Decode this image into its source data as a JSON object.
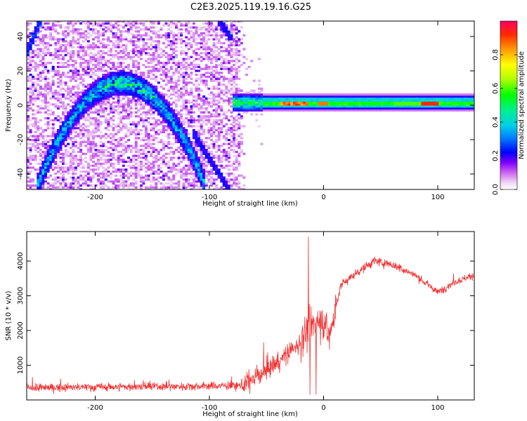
{
  "title": "C2E3.2025.119.19.16.G25",
  "chart_data": [
    {
      "type": "heatmap",
      "name": "spectrogram",
      "xlabel": "Height of straight line (km)",
      "ylabel": "Frequency (Hz)",
      "xlim": [
        -260,
        132
      ],
      "ylim": [
        -49,
        49
      ],
      "xticks": [
        -200,
        -100,
        0,
        100
      ],
      "yticks": [
        -40,
        -20,
        0,
        20,
        40
      ],
      "colorbar": {
        "label": "Normalized spectral amplitude",
        "range": [
          0,
          1
        ],
        "ticks": [
          0.0,
          0.2,
          0.4,
          0.6,
          0.8
        ]
      },
      "features": [
        {
          "name": "noise-cloud",
          "x_range": [
            -260,
            -72
          ],
          "y_range": [
            -49,
            49
          ]
        },
        {
          "name": "arc-main",
          "apex_x": -178,
          "apex_y": 13,
          "x_range": [
            -252,
            -105
          ],
          "y_end": -49
        },
        {
          "name": "upper-left-branch",
          "x_range": [
            -260,
            -247
          ],
          "y_range": [
            32,
            49
          ]
        },
        {
          "name": "upper-right-branch",
          "x_range": [
            -93,
            -82
          ],
          "y_range": [
            40,
            49
          ]
        },
        {
          "name": "lower-right-branch",
          "x_range": [
            -112,
            -85
          ],
          "y_range": [
            -20,
            -49
          ]
        },
        {
          "name": "carrier-line",
          "x_range": [
            -75,
            132
          ],
          "y_center": 1.5
        }
      ]
    },
    {
      "type": "line",
      "name": "snr",
      "xlabel": "Height of straight line (km)",
      "ylabel": "SNR (10 * v/v)",
      "xlim": [
        -260,
        132
      ],
      "ylim": [
        0,
        4850
      ],
      "xticks": [
        -200,
        -100,
        0,
        100
      ],
      "yticks": [
        1000,
        2000,
        3000,
        4000
      ],
      "color": "#f03030",
      "profile": [
        {
          "x": -260,
          "y": 350
        },
        {
          "x": -170,
          "y": 380
        },
        {
          "x": -100,
          "y": 400
        },
        {
          "x": -70,
          "y": 420
        },
        {
          "x": -55,
          "y": 750
        },
        {
          "x": -40,
          "y": 1100
        },
        {
          "x": -25,
          "y": 1500
        },
        {
          "x": -10,
          "y": 2200
        },
        {
          "x": 0,
          "y": 2300
        },
        {
          "x": 5,
          "y": 1800
        },
        {
          "x": 15,
          "y": 3300
        },
        {
          "x": 30,
          "y": 3700
        },
        {
          "x": 45,
          "y": 4000
        },
        {
          "x": 60,
          "y": 3900
        },
        {
          "x": 80,
          "y": 3600
        },
        {
          "x": 100,
          "y": 3100
        },
        {
          "x": 115,
          "y": 3400
        },
        {
          "x": 132,
          "y": 3600
        }
      ]
    }
  ]
}
